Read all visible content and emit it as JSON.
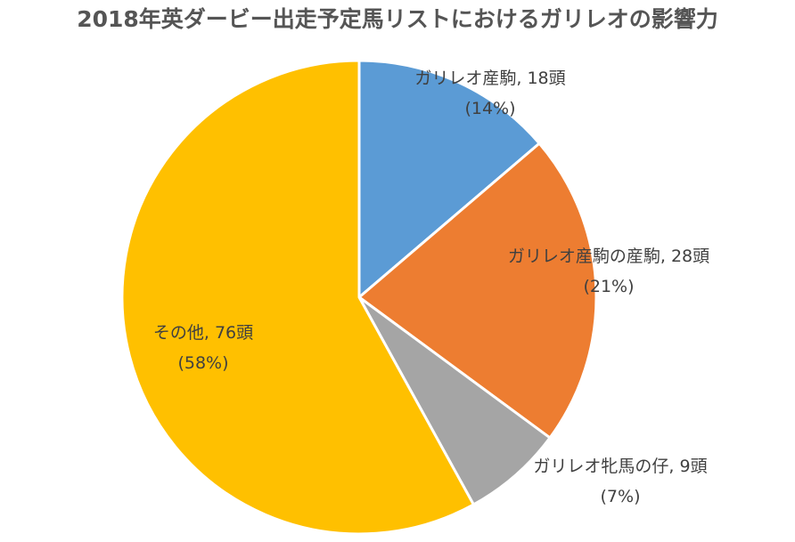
{
  "chart_data": {
    "type": "pie",
    "title": "2018年英ダービー出走予定馬リストにおけるガリレオの影響力",
    "slices": [
      {
        "label": "ガリレオ産駒",
        "value": 18,
        "unit": "頭",
        "percent": "14%",
        "color": "#5B9BD5"
      },
      {
        "label": "ガリレオ産駒の産駒",
        "value": 28,
        "unit": "頭",
        "percent": "21%",
        "color": "#ED7D31"
      },
      {
        "label": "ガリレオ牝馬の仔",
        "value": 9,
        "unit": "頭",
        "percent": "7%",
        "color": "#A5A5A5"
      },
      {
        "label": "その他",
        "value": 76,
        "unit": "頭",
        "percent": "58%",
        "color": "#FFC000"
      }
    ],
    "start_angle_deg": 0,
    "direction": "clockwise",
    "legend": "none"
  }
}
